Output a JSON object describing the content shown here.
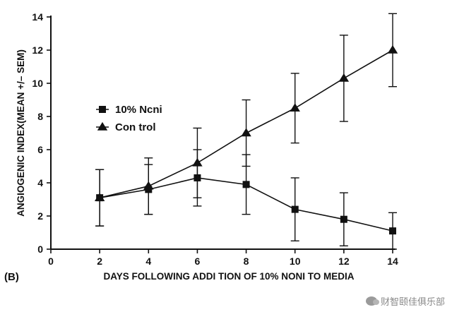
{
  "panel_label": "(B)",
  "watermark": "财智颐佳俱乐部",
  "chart_data": {
    "type": "line",
    "title": "",
    "xlabel": "DAYS FOLLOWING ADDI TION OF 10% NONI TO MEDIA",
    "ylabel": "ANGIOGENIC INDEX(MEAN +/– SEM)",
    "xlim": [
      0,
      14
    ],
    "ylim": [
      0,
      14
    ],
    "xticks": [
      0,
      2,
      4,
      6,
      8,
      10,
      12,
      14
    ],
    "yticks": [
      0,
      2,
      4,
      6,
      8,
      10,
      12,
      14
    ],
    "grid": false,
    "legend_position": "upper-left",
    "x": [
      2,
      4,
      6,
      8,
      10,
      12,
      14
    ],
    "series": [
      {
        "name": "10% Ncni",
        "marker": "square",
        "values": [
          3.1,
          3.6,
          4.3,
          3.9,
          2.4,
          1.8,
          1.1
        ],
        "error": [
          1.7,
          1.5,
          1.7,
          1.8,
          1.9,
          1.6,
          1.1
        ]
      },
      {
        "name": "Con trol",
        "marker": "triangle",
        "values": [
          3.1,
          3.8,
          5.2,
          7.0,
          8.5,
          10.3,
          12.0
        ],
        "error": [
          1.7,
          1.7,
          2.1,
          2.0,
          2.1,
          2.6,
          2.2
        ]
      }
    ]
  }
}
